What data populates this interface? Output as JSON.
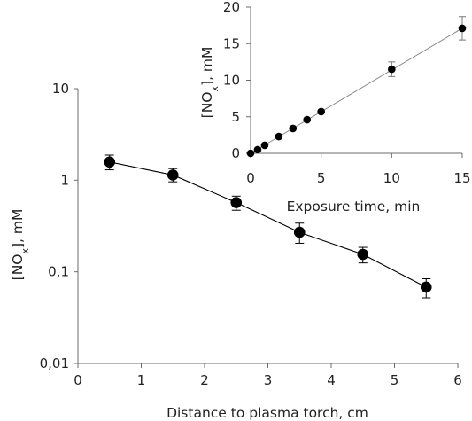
{
  "chart_data": [
    {
      "id": "main",
      "type": "scatter",
      "xlabel": "Distance to plasma torch, cm",
      "ylabel": "[NO",
      "ylabel_sub": "x",
      "ylabel_tail": "], mM",
      "xlim": [
        0,
        6
      ],
      "ylim": [
        0.01,
        10
      ],
      "yscale": "log",
      "xticks": [
        0,
        1,
        2,
        3,
        4,
        5,
        6
      ],
      "xtick_labels": [
        "0",
        "1",
        "2",
        "3",
        "4",
        "5",
        "6"
      ],
      "yticks": [
        0.01,
        0.1,
        1,
        10
      ],
      "ytick_labels": [
        "0,01",
        "0,1",
        "1",
        "10"
      ],
      "connect_points": true,
      "marker_color": "#000000",
      "line_color": "#000000",
      "series": [
        {
          "x": [
            0.5,
            1.5,
            2.5,
            3.5,
            4.5,
            5.5
          ],
          "y": [
            1.58,
            1.14,
            0.57,
            0.27,
            0.155,
            0.068
          ],
          "err_low": [
            0.28,
            0.18,
            0.1,
            0.065,
            0.03,
            0.016
          ],
          "err_high": [
            0.3,
            0.2,
            0.1,
            0.07,
            0.03,
            0.016
          ]
        }
      ]
    },
    {
      "id": "inset",
      "type": "scatter",
      "xlabel": "Exposure time, min",
      "ylabel": "[NO",
      "ylabel_sub": "x",
      "ylabel_tail": "], mM",
      "xlim": [
        0,
        15
      ],
      "ylim": [
        0,
        20
      ],
      "yscale": "linear",
      "xticks": [
        0,
        5,
        10,
        15
      ],
      "xtick_labels": [
        "0",
        "5",
        "10",
        "15"
      ],
      "yticks": [
        0,
        5,
        10,
        15,
        20
      ],
      "ytick_labels": [
        "0",
        "5",
        "10",
        "15",
        "20"
      ],
      "fit_line": {
        "x": [
          0,
          15
        ],
        "y": [
          0,
          17.1
        ],
        "color": "#888888"
      },
      "marker_color": "#000000",
      "series": [
        {
          "x": [
            0,
            0.5,
            1,
            2,
            3,
            4,
            5,
            10,
            15
          ],
          "y": [
            0,
            0.5,
            1.1,
            2.3,
            3.4,
            4.6,
            5.7,
            11.5,
            17.1
          ],
          "err": [
            0,
            0,
            0,
            0,
            0,
            0,
            0,
            1.0,
            1.6
          ]
        }
      ]
    }
  ]
}
